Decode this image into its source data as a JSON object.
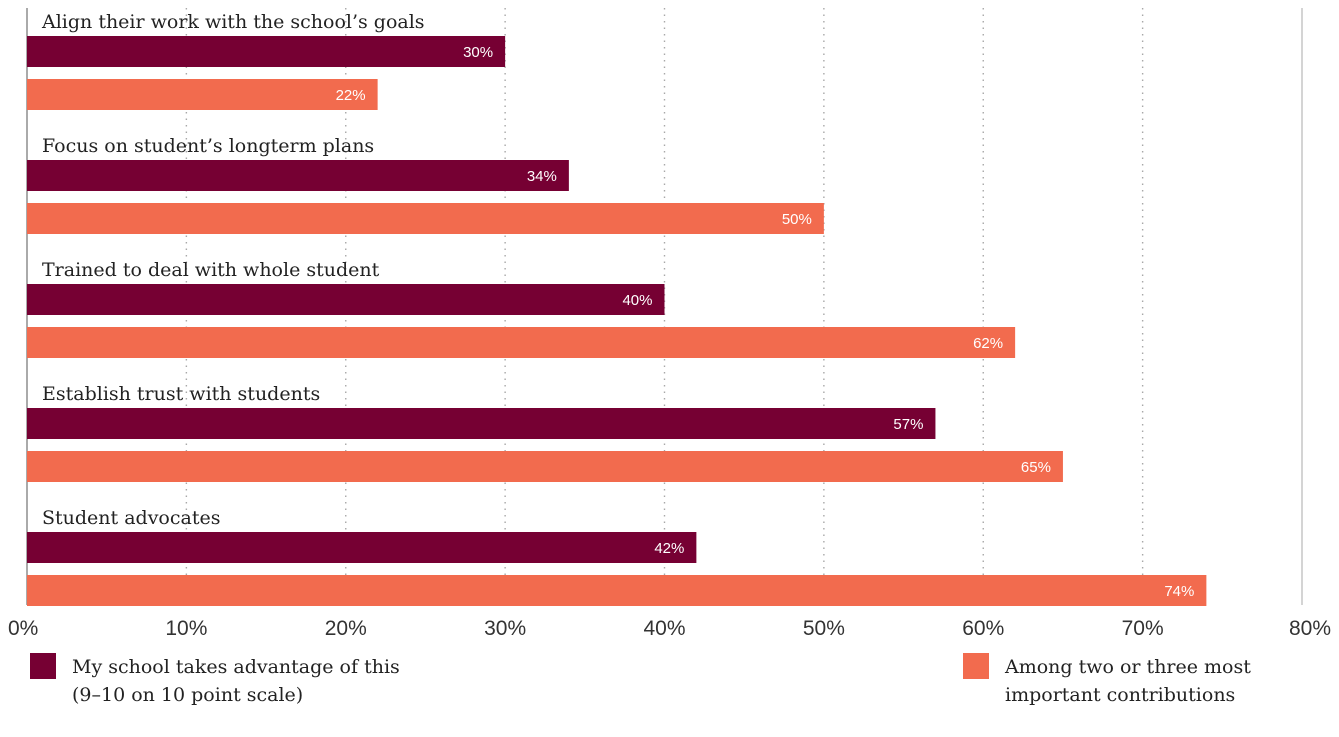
{
  "chart_data": {
    "type": "bar",
    "orientation": "horizontal",
    "categories": [
      "Align their work with the school’s goals",
      "Focus on student’s longterm plans",
      "Trained to deal with whole student",
      "Establish trust with students",
      "Student advocates"
    ],
    "series": [
      {
        "name": "My school takes advantage of this (9–10 on 10 point scale)",
        "color": "#760033",
        "values": [
          30,
          34,
          40,
          57,
          42
        ],
        "labels": [
          "30%",
          "34%",
          "40%",
          "57%",
          "42%"
        ]
      },
      {
        "name": "Among two or three most important contributions",
        "color": "#f26b4e",
        "values": [
          22,
          50,
          62,
          65,
          74
        ],
        "labels": [
          "22%",
          "50%",
          "62%",
          "65%",
          "74%"
        ]
      }
    ],
    "xlim": [
      0,
      80
    ],
    "xticks": [
      0,
      10,
      20,
      30,
      40,
      50,
      60,
      70,
      80
    ],
    "xtick_labels": [
      "0%",
      "10%",
      "20%",
      "30%",
      "40%",
      "50%",
      "60%",
      "70%",
      "80%"
    ],
    "grid": "vertical dotted",
    "legend_position": "bottom"
  },
  "legend": {
    "left": {
      "line1": "My school takes advantage of this",
      "line2": "(9–10 on 10 point scale)",
      "color": "#760033"
    },
    "right": {
      "line1": "Among two or three most",
      "line2": "important contributions",
      "color": "#f26b4e"
    }
  }
}
